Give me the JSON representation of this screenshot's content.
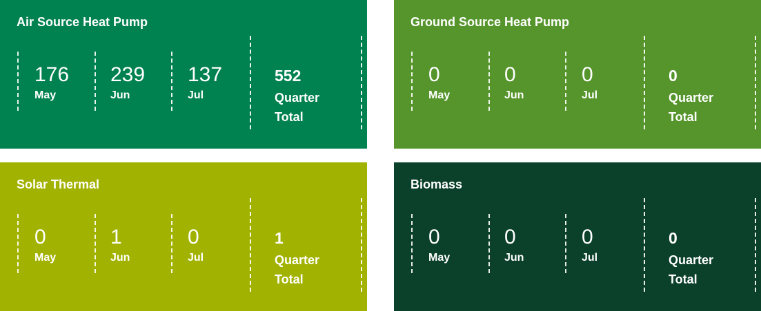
{
  "panels": [
    {
      "title": "Air Source Heat Pump",
      "color": "#008150",
      "months": [
        {
          "value": 176,
          "label": "May"
        },
        {
          "value": 239,
          "label": "Jun"
        },
        {
          "value": 137,
          "label": "Jul"
        }
      ],
      "total": {
        "value": 552,
        "label": "Quarter Total"
      }
    },
    {
      "title": "Ground Source Heat Pump",
      "color": "#55952b",
      "months": [
        {
          "value": 0,
          "label": "May"
        },
        {
          "value": 0,
          "label": "Jun"
        },
        {
          "value": 0,
          "label": "Jul"
        }
      ],
      "total": {
        "value": 0,
        "label": "Quarter Total"
      }
    },
    {
      "title": "Solar Thermal",
      "color": "#a2b200",
      "months": [
        {
          "value": 0,
          "label": "May"
        },
        {
          "value": 1,
          "label": "Jun"
        },
        {
          "value": 0,
          "label": "Jul"
        }
      ],
      "total": {
        "value": 1,
        "label": "Quarter Total"
      }
    },
    {
      "title": "Biomass",
      "color": "#0b402a",
      "months": [
        {
          "value": 0,
          "label": "May"
        },
        {
          "value": 0,
          "label": "Jun"
        },
        {
          "value": 0,
          "label": "Jul"
        }
      ],
      "total": {
        "value": 0,
        "label": "Quarter Total"
      }
    }
  ]
}
